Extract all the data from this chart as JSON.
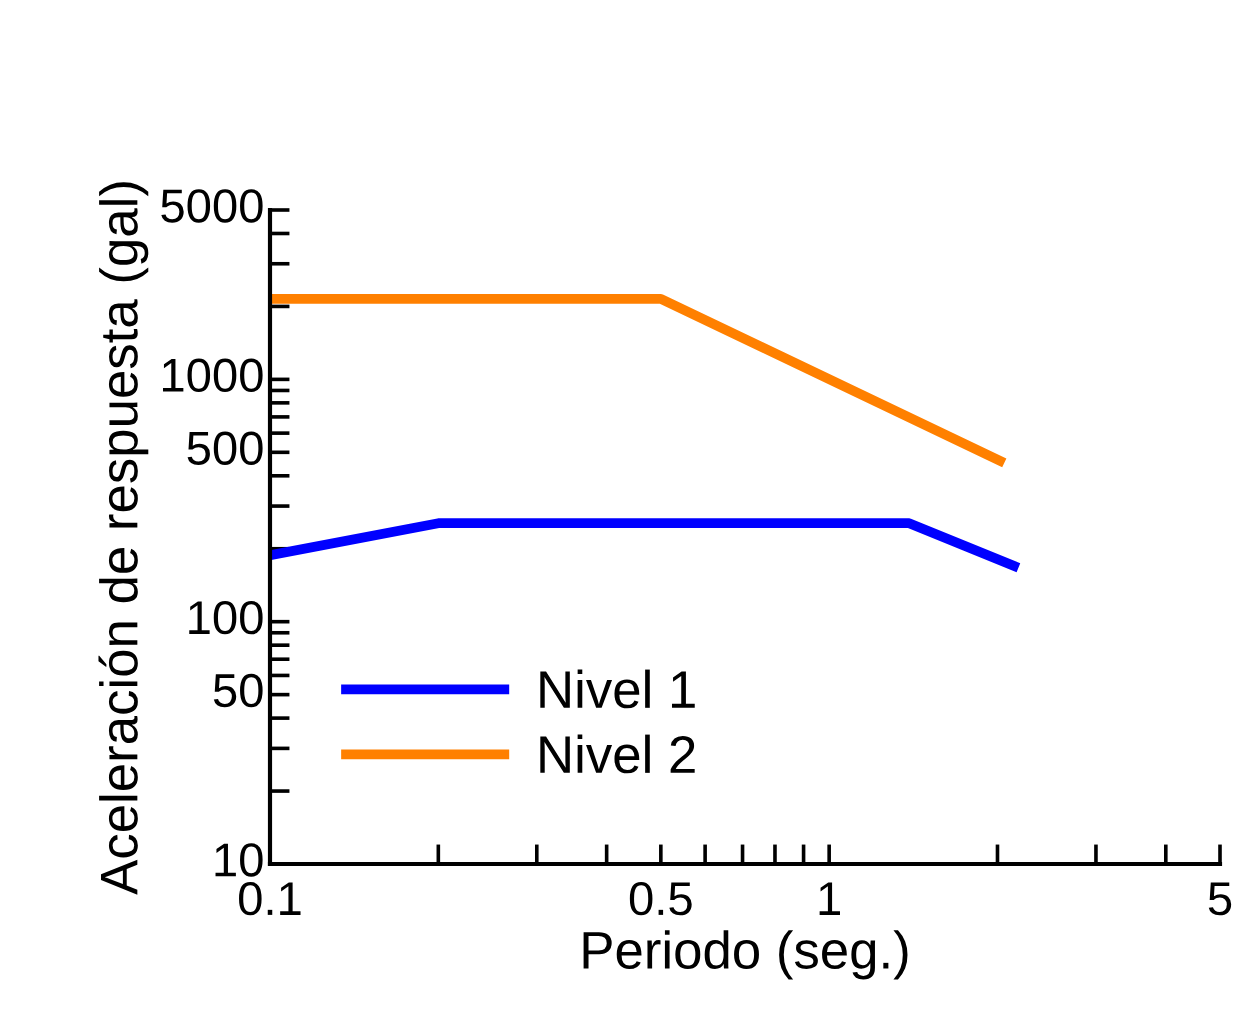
{
  "chart_data": {
    "type": "line",
    "xlabel": "Periodo (seg.)",
    "ylabel": "Aceleración de respuesta (gal)",
    "log": "xy",
    "xlim": [
      0.1,
      5
    ],
    "ylim": [
      10,
      5000
    ],
    "xticks": [
      0.1,
      {
        "value": 0.2,
        "label": null
      },
      {
        "value": 0.3,
        "label": null
      },
      {
        "value": 0.4,
        "label": null
      },
      0.5,
      {
        "value": 0.6,
        "label": null
      },
      {
        "value": 0.7,
        "label": null
      },
      {
        "value": 0.8,
        "label": null
      },
      {
        "value": 0.9,
        "label": null
      },
      1,
      {
        "value": 2,
        "label": null
      },
      {
        "value": 3,
        "label": null
      },
      {
        "value": 4,
        "label": null
      },
      5
    ],
    "yticks": [
      10,
      {
        "value": 20,
        "label": null
      },
      {
        "value": 30,
        "label": null
      },
      {
        "value": 40,
        "label": null
      },
      50,
      {
        "value": 60,
        "label": null
      },
      {
        "value": 70,
        "label": null
      },
      {
        "value": 80,
        "label": null
      },
      {
        "value": 90,
        "label": null
      },
      100,
      {
        "value": 200,
        "label": null
      },
      {
        "value": 300,
        "label": null
      },
      {
        "value": 400,
        "label": null
      },
      500,
      {
        "value": 600,
        "label": null
      },
      {
        "value": 700,
        "label": null
      },
      {
        "value": 800,
        "label": null
      },
      {
        "value": 900,
        "label": null
      },
      1000,
      {
        "value": 2000,
        "label": null
      },
      {
        "value": 3000,
        "label": null
      },
      {
        "value": 4000,
        "label": null
      },
      5000
    ],
    "legend": "bottom left",
    "grid": false,
    "series": [
      {
        "name": "Nivel 1",
        "color": "#0000ff",
        "x": [
          0.1,
          0.2,
          1.39,
          2.14
        ],
        "values": [
          188,
          255,
          255,
          170
        ]
      },
      {
        "name": "Nivel 2",
        "color": "#ff8000",
        "x": [
          0.1,
          0.5,
          2.02
        ],
        "values": [
          2150,
          2150,
          461
        ]
      }
    ]
  }
}
